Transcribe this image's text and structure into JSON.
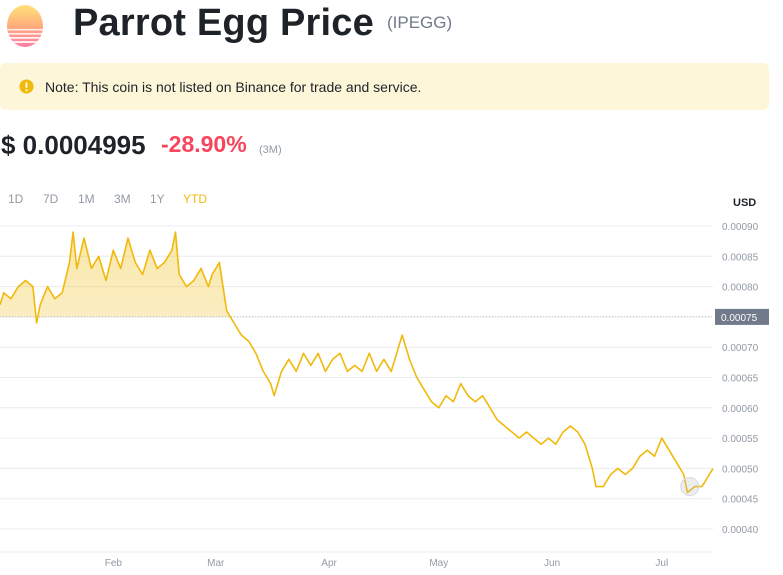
{
  "header": {
    "title": "Parrot Egg Price",
    "ticker": "(IPEGG)",
    "logo_icon": "parrot-egg-logo"
  },
  "notice": {
    "icon": "warning-icon",
    "text": "Note: This coin is not listed on Binance for trade and service."
  },
  "price": {
    "value": "$ 0.0004995",
    "change": "-28.90%",
    "period": "(3M)"
  },
  "range_tabs": [
    {
      "label": "1D",
      "active": false
    },
    {
      "label": "7D",
      "active": false
    },
    {
      "label": "1M",
      "active": false
    },
    {
      "label": "3M",
      "active": false
    },
    {
      "label": "1Y",
      "active": false
    },
    {
      "label": "YTD",
      "active": true
    }
  ],
  "colors": {
    "line": "#f0b90b",
    "negative": "#f6465d",
    "notice_bg": "#fef6d8",
    "current_price_tag": "#707a8a"
  },
  "chart_data": {
    "type": "area",
    "currency_label": "USD",
    "x_ticks": [
      "Feb",
      "Mar",
      "Apr",
      "May",
      "Jun",
      "Jul"
    ],
    "y_ticks": [
      "0.00090",
      "0.00085",
      "0.00080",
      "0.00075",
      "0.00070",
      "0.00065",
      "0.00060",
      "0.00055",
      "0.00050",
      "0.00045",
      "0.00040"
    ],
    "y_tick_values": [
      0.0009,
      0.00085,
      0.0008,
      0.00075,
      0.0007,
      0.00065,
      0.0006,
      0.00055,
      0.0005,
      0.00045,
      0.0004
    ],
    "ylim": [
      0.00037,
      0.00093
    ],
    "reference_price": 0.00075,
    "reference_label": "0.00075",
    "grid": true,
    "x_domain": [
      "2023-01-01",
      "2023-07-15"
    ],
    "points": [
      [
        "2023-01-01",
        0.00077
      ],
      [
        "2023-01-02",
        0.00079
      ],
      [
        "2023-01-04",
        0.00078
      ],
      [
        "2023-01-06",
        0.0008
      ],
      [
        "2023-01-08",
        0.00081
      ],
      [
        "2023-01-10",
        0.0008
      ],
      [
        "2023-01-11",
        0.00074
      ],
      [
        "2023-01-12",
        0.00077
      ],
      [
        "2023-01-14",
        0.0008
      ],
      [
        "2023-01-16",
        0.00078
      ],
      [
        "2023-01-18",
        0.00079
      ],
      [
        "2023-01-20",
        0.00084
      ],
      [
        "2023-01-21",
        0.00089
      ],
      [
        "2023-01-22",
        0.00083
      ],
      [
        "2023-01-24",
        0.00088
      ],
      [
        "2023-01-26",
        0.00083
      ],
      [
        "2023-01-28",
        0.00085
      ],
      [
        "2023-01-30",
        0.00081
      ],
      [
        "2023-02-01",
        0.00086
      ],
      [
        "2023-02-03",
        0.00083
      ],
      [
        "2023-02-05",
        0.00088
      ],
      [
        "2023-02-07",
        0.00084
      ],
      [
        "2023-02-09",
        0.00082
      ],
      [
        "2023-02-11",
        0.00086
      ],
      [
        "2023-02-13",
        0.00083
      ],
      [
        "2023-02-15",
        0.00084
      ],
      [
        "2023-02-17",
        0.00086
      ],
      [
        "2023-02-18",
        0.00089
      ],
      [
        "2023-02-19",
        0.00082
      ],
      [
        "2023-02-21",
        0.0008
      ],
      [
        "2023-02-23",
        0.00081
      ],
      [
        "2023-02-25",
        0.00083
      ],
      [
        "2023-02-27",
        0.0008
      ],
      [
        "2023-02-28",
        0.00082
      ],
      [
        "2023-03-02",
        0.00084
      ],
      [
        "2023-03-03",
        0.0008
      ],
      [
        "2023-03-04",
        0.00076
      ],
      [
        "2023-03-06",
        0.00074
      ],
      [
        "2023-03-08",
        0.00072
      ],
      [
        "2023-03-10",
        0.00071
      ],
      [
        "2023-03-12",
        0.00069
      ],
      [
        "2023-03-14",
        0.00066
      ],
      [
        "2023-03-16",
        0.00064
      ],
      [
        "2023-03-17",
        0.00062
      ],
      [
        "2023-03-19",
        0.00066
      ],
      [
        "2023-03-21",
        0.00068
      ],
      [
        "2023-03-23",
        0.00066
      ],
      [
        "2023-03-25",
        0.00069
      ],
      [
        "2023-03-27",
        0.00067
      ],
      [
        "2023-03-29",
        0.00069
      ],
      [
        "2023-03-31",
        0.00066
      ],
      [
        "2023-04-02",
        0.00068
      ],
      [
        "2023-04-04",
        0.00069
      ],
      [
        "2023-04-06",
        0.00066
      ],
      [
        "2023-04-08",
        0.00067
      ],
      [
        "2023-04-10",
        0.00066
      ],
      [
        "2023-04-12",
        0.00069
      ],
      [
        "2023-04-14",
        0.00066
      ],
      [
        "2023-04-16",
        0.00068
      ],
      [
        "2023-04-18",
        0.00066
      ],
      [
        "2023-04-20",
        0.0007
      ],
      [
        "2023-04-21",
        0.00072
      ],
      [
        "2023-04-23",
        0.00068
      ],
      [
        "2023-04-25",
        0.00065
      ],
      [
        "2023-04-27",
        0.00063
      ],
      [
        "2023-04-29",
        0.00061
      ],
      [
        "2023-05-01",
        0.0006
      ],
      [
        "2023-05-03",
        0.00062
      ],
      [
        "2023-05-05",
        0.00061
      ],
      [
        "2023-05-07",
        0.00064
      ],
      [
        "2023-05-09",
        0.00062
      ],
      [
        "2023-05-11",
        0.00061
      ],
      [
        "2023-05-13",
        0.00062
      ],
      [
        "2023-05-15",
        0.0006
      ],
      [
        "2023-05-17",
        0.00058
      ],
      [
        "2023-05-19",
        0.00057
      ],
      [
        "2023-05-21",
        0.00056
      ],
      [
        "2023-05-23",
        0.00055
      ],
      [
        "2023-05-25",
        0.00056
      ],
      [
        "2023-05-27",
        0.00055
      ],
      [
        "2023-05-29",
        0.00054
      ],
      [
        "2023-05-31",
        0.00055
      ],
      [
        "2023-06-02",
        0.00054
      ],
      [
        "2023-06-04",
        0.00056
      ],
      [
        "2023-06-06",
        0.00057
      ],
      [
        "2023-06-08",
        0.00056
      ],
      [
        "2023-06-10",
        0.00054
      ],
      [
        "2023-06-12",
        0.0005
      ],
      [
        "2023-06-13",
        0.00047
      ],
      [
        "2023-06-15",
        0.00047
      ],
      [
        "2023-06-17",
        0.00049
      ],
      [
        "2023-06-19",
        0.0005
      ],
      [
        "2023-06-21",
        0.00049
      ],
      [
        "2023-06-23",
        0.0005
      ],
      [
        "2023-06-25",
        0.00052
      ],
      [
        "2023-06-27",
        0.00053
      ],
      [
        "2023-06-29",
        0.00052
      ],
      [
        "2023-07-01",
        0.00055
      ],
      [
        "2023-07-03",
        0.00053
      ],
      [
        "2023-07-05",
        0.00051
      ],
      [
        "2023-07-07",
        0.00049
      ],
      [
        "2023-07-08",
        0.00046
      ],
      [
        "2023-07-10",
        0.00047
      ],
      [
        "2023-07-12",
        0.00047
      ],
      [
        "2023-07-13",
        0.00048
      ],
      [
        "2023-07-15",
        0.0005
      ]
    ]
  }
}
